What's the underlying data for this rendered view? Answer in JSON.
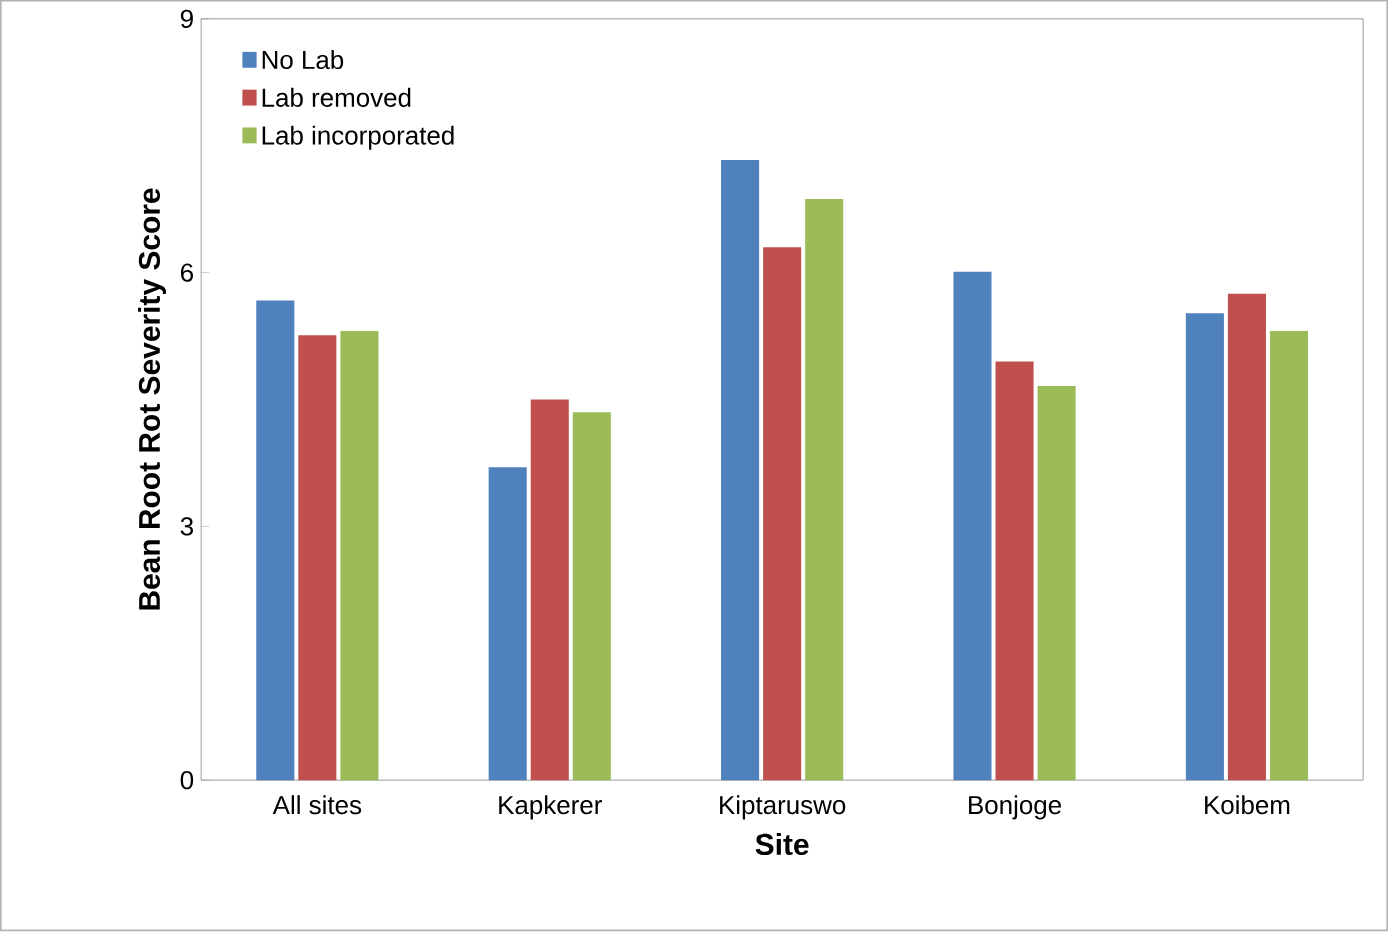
{
  "chart_data": {
    "type": "bar",
    "xlabel": "Site",
    "ylabel": "Bean Root Rot Severity Score",
    "categories": [
      "All sites",
      "Kapkerer",
      "Kiptaruswo",
      "Bonjoge",
      "Koibem"
    ],
    "series": [
      {
        "name": "No Lab",
        "color": "#4f81bd",
        "values": [
          5.67,
          3.7,
          7.33,
          6.01,
          5.52
        ]
      },
      {
        "name": "Lab removed",
        "color": "#c0504d",
        "values": [
          5.26,
          4.5,
          6.3,
          4.95,
          5.75
        ]
      },
      {
        "name": "Lab incorporated",
        "color": "#9bbb59",
        "values": [
          5.31,
          4.35,
          6.87,
          4.66,
          5.31
        ]
      }
    ],
    "ylim": [
      0,
      9
    ],
    "yticks": [
      0,
      3,
      6,
      9
    ],
    "grid": false,
    "legend": "top left"
  }
}
